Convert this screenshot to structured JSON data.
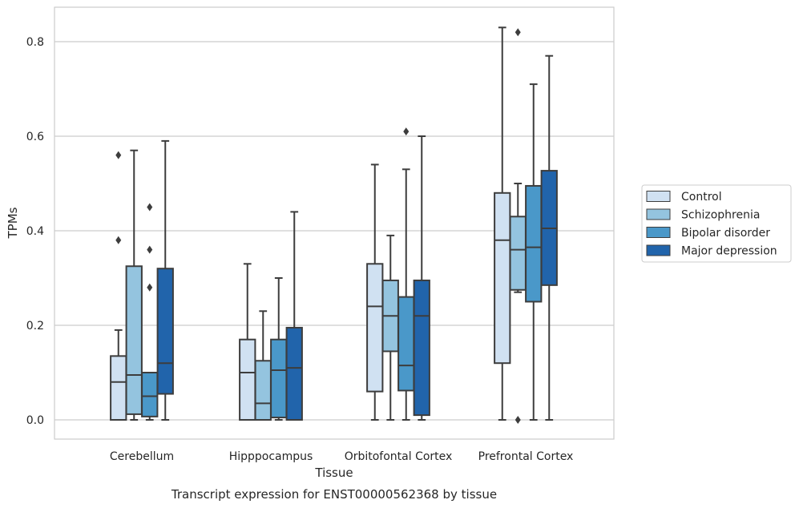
{
  "chart_data": {
    "type": "box",
    "xlabel": "Tissue",
    "ylabel": "TPMs",
    "caption": "Transcript expression for ENST00000562368 by tissue",
    "ylim": [
      -0.04,
      0.875
    ],
    "yticks": [
      0.0,
      0.2,
      0.4,
      0.6,
      0.8
    ],
    "ytick_labels": [
      "0.0",
      "0.2",
      "0.4",
      "0.6",
      "0.8"
    ],
    "grid": "horizontal",
    "legend_position": "right",
    "categories": [
      "Cerebellum",
      "Hipppocampus",
      "Orbitofontal Cortex",
      "Prefrontal Cortex"
    ],
    "series": [
      {
        "name": "Control",
        "color": "#d0e1f2",
        "boxes": [
          {
            "whisker_low": 0.0,
            "q1": 0.0,
            "median": 0.08,
            "q3": 0.135,
            "whisker_high": 0.19,
            "outliers": [
              0.38,
              0.56
            ]
          },
          {
            "whisker_low": 0.0,
            "q1": 0.0,
            "median": 0.1,
            "q3": 0.17,
            "whisker_high": 0.33,
            "outliers": []
          },
          {
            "whisker_low": 0.0,
            "q1": 0.06,
            "median": 0.24,
            "q3": 0.33,
            "whisker_high": 0.54,
            "outliers": []
          },
          {
            "whisker_low": 0.0,
            "q1": 0.12,
            "median": 0.38,
            "q3": 0.48,
            "whisker_high": 0.83,
            "outliers": []
          }
        ]
      },
      {
        "name": "Schizophrenia",
        "color": "#94c4df",
        "boxes": [
          {
            "whisker_low": 0.0,
            "q1": 0.012,
            "median": 0.095,
            "q3": 0.325,
            "whisker_high": 0.57,
            "outliers": []
          },
          {
            "whisker_low": 0.0,
            "q1": 0.0,
            "median": 0.035,
            "q3": 0.125,
            "whisker_high": 0.23,
            "outliers": []
          },
          {
            "whisker_low": 0.0,
            "q1": 0.145,
            "median": 0.22,
            "q3": 0.295,
            "whisker_high": 0.39,
            "outliers": []
          },
          {
            "whisker_low": 0.27,
            "q1": 0.275,
            "median": 0.36,
            "q3": 0.43,
            "whisker_high": 0.5,
            "outliers": [
              0.82,
              0.0
            ]
          }
        ]
      },
      {
        "name": "Bipolar disorder",
        "color": "#4a98c9",
        "boxes": [
          {
            "whisker_low": 0.0,
            "q1": 0.007,
            "median": 0.05,
            "q3": 0.1,
            "whisker_high": 0.1,
            "outliers": [
              0.28,
              0.36,
              0.45
            ]
          },
          {
            "whisker_low": 0.0,
            "q1": 0.005,
            "median": 0.105,
            "q3": 0.17,
            "whisker_high": 0.3,
            "outliers": []
          },
          {
            "whisker_low": 0.0,
            "q1": 0.062,
            "median": 0.115,
            "q3": 0.26,
            "whisker_high": 0.53,
            "outliers": [
              0.61
            ]
          },
          {
            "whisker_low": 0.0,
            "q1": 0.25,
            "median": 0.365,
            "q3": 0.495,
            "whisker_high": 0.71,
            "outliers": []
          }
        ]
      },
      {
        "name": "Major depression",
        "color": "#2164ab",
        "boxes": [
          {
            "whisker_low": 0.0,
            "q1": 0.055,
            "median": 0.12,
            "q3": 0.32,
            "whisker_high": 0.59,
            "outliers": []
          },
          {
            "whisker_low": 0.0,
            "q1": 0.0,
            "median": 0.11,
            "q3": 0.195,
            "whisker_high": 0.44,
            "outliers": []
          },
          {
            "whisker_low": 0.0,
            "q1": 0.01,
            "median": 0.22,
            "q3": 0.295,
            "whisker_high": 0.6,
            "outliers": []
          },
          {
            "whisker_low": 0.0,
            "q1": 0.285,
            "median": 0.405,
            "q3": 0.527,
            "whisker_high": 0.77,
            "outliers": []
          }
        ]
      }
    ]
  }
}
